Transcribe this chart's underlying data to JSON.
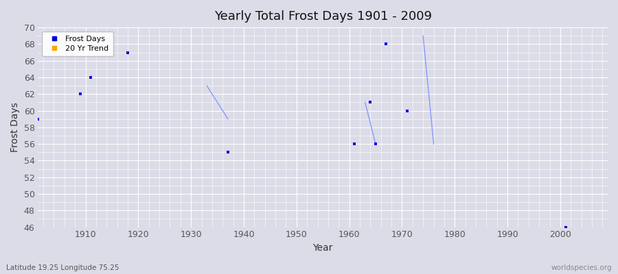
{
  "title": "Yearly Total Frost Days 1901 - 2009",
  "xlabel": "Year",
  "ylabel": "Frost Days",
  "subtitle": "Latitude 19.25 Longitude 75.25",
  "watermark": "worldspecies.org",
  "xlim": [
    1901,
    2009
  ],
  "ylim": [
    46,
    70
  ],
  "yticks": [
    46,
    48,
    50,
    52,
    54,
    56,
    58,
    60,
    62,
    64,
    66,
    68,
    70
  ],
  "xticks": [
    1910,
    1920,
    1930,
    1940,
    1950,
    1960,
    1970,
    1980,
    1990,
    2000
  ],
  "frost_days_x": [
    1901,
    1909,
    1911,
    1918,
    1937,
    1961,
    1964,
    1965,
    1967,
    1971,
    2001
  ],
  "frost_days_y": [
    59,
    62,
    64,
    67,
    55,
    56,
    61,
    56,
    68,
    60,
    46
  ],
  "trend_segments": [
    {
      "x": [
        1933,
        1937
      ],
      "y": [
        63,
        59
      ]
    },
    {
      "x": [
        1963,
        1965
      ],
      "y": [
        61,
        56
      ]
    },
    {
      "x": [
        1974,
        1976
      ],
      "y": [
        69,
        56
      ]
    }
  ],
  "dot_color": "#0000dd",
  "trend_color": "#8899ff",
  "background_color": "#dcdce8",
  "plot_bg_color": "#dcdce8",
  "legend_dot_color": "#0000dd",
  "legend_trend_color": "#ffa500",
  "grid_color": "#ffffff",
  "minor_grid_color": "#e8e8f2",
  "tick_color": "#555555",
  "title_color": "#111111"
}
